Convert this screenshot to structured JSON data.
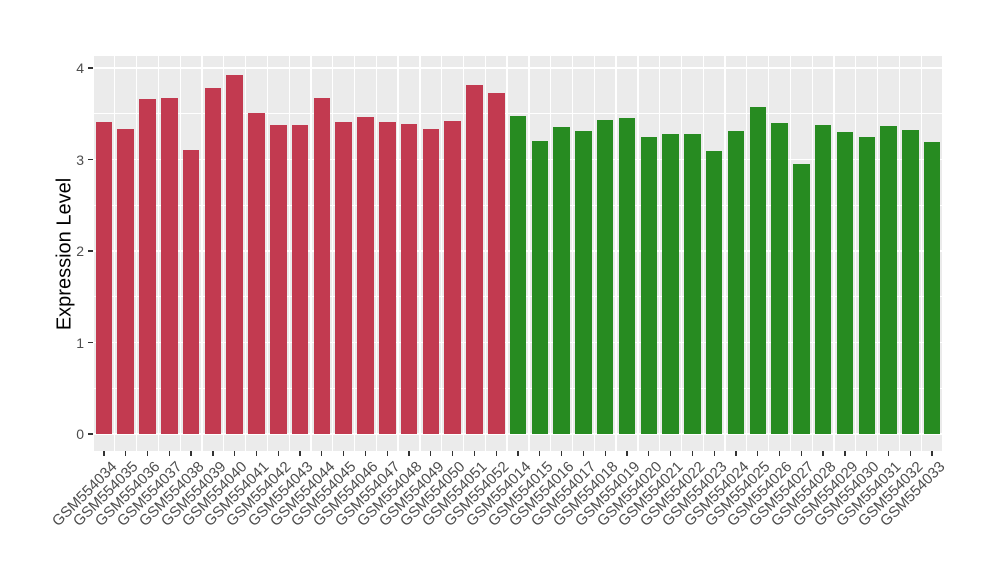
{
  "chart_data": {
    "type": "bar",
    "title": "",
    "xlabel": "",
    "ylabel": "Expression Level",
    "ylim": [
      0,
      4.1
    ],
    "yticks": [
      0,
      1,
      2,
      3,
      4
    ],
    "grid": "on",
    "legend": "none",
    "background": {
      "figure": "#FFFFFF",
      "panel": "#EBEBEB",
      "gridline": "#FFFFFF"
    },
    "axis_text_color": "#4D4D4D",
    "tick_color": "#333333",
    "series": [
      {
        "name": "red-group",
        "color": "#C23A50",
        "categories": [
          "GSM554034",
          "GSM554035",
          "GSM554036",
          "GSM554037",
          "GSM554038",
          "GSM554039",
          "GSM554040",
          "GSM554041",
          "GSM554042",
          "GSM554043",
          "GSM554044",
          "GSM554045",
          "GSM554046",
          "GSM554047",
          "GSM554048",
          "GSM554049",
          "GSM554050",
          "GSM554051",
          "GSM554052"
        ],
        "values": [
          3.41,
          3.33,
          3.66,
          3.67,
          3.1,
          3.78,
          3.92,
          3.51,
          3.38,
          3.38,
          3.67,
          3.41,
          3.47,
          3.41,
          3.39,
          3.33,
          3.42,
          3.82,
          3.73
        ]
      },
      {
        "name": "green-group",
        "color": "#278B21",
        "categories": [
          "GSM554014",
          "GSM554015",
          "GSM554016",
          "GSM554017",
          "GSM554018",
          "GSM554019",
          "GSM554020",
          "GSM554021",
          "GSM554022",
          "GSM554023",
          "GSM554024",
          "GSM554025",
          "GSM554026",
          "GSM554027",
          "GSM554028",
          "GSM554029",
          "GSM554030",
          "GSM554031",
          "GSM554032",
          "GSM554033"
        ],
        "values": [
          3.48,
          3.2,
          3.36,
          3.31,
          3.43,
          3.45,
          3.25,
          3.28,
          3.28,
          3.09,
          3.31,
          3.57,
          3.4,
          2.95,
          3.38,
          3.3,
          3.25,
          3.37,
          3.32,
          3.19
        ]
      }
    ]
  }
}
